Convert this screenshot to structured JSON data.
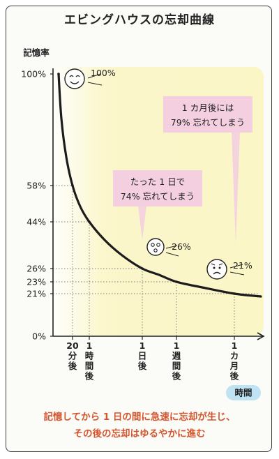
{
  "colors": {
    "plot_background": "#fbf6c6",
    "curve": "#1c1c1c",
    "callout": "#f4cfe0",
    "axis_chip": "#bfe3f2",
    "caption": "#d4562f"
  },
  "chart_data": {
    "type": "line",
    "title": "エビングハウスの忘却曲線",
    "ylabel": "記憶率",
    "xlabel": "時間",
    "ylim": [
      0,
      100
    ],
    "y_ticks": [
      {
        "value": 100,
        "label": "100%"
      },
      {
        "value": 58,
        "label": "58%"
      },
      {
        "value": 44,
        "label": "44%"
      },
      {
        "value": 26,
        "label": "26%"
      },
      {
        "value": 23,
        "label": "23%"
      },
      {
        "value": 21,
        "label": "21%"
      },
      {
        "value": 0,
        "label": "0%"
      }
    ],
    "x_ticks": [
      {
        "label": "20分後"
      },
      {
        "label": "1時間後"
      },
      {
        "label": "1日後"
      },
      {
        "label": "1週間後"
      },
      {
        "label": "1カ月後"
      }
    ],
    "series": [
      {
        "points": [
          {
            "x": "0",
            "y": 100
          },
          {
            "x": "20分後",
            "y": 58
          },
          {
            "x": "1時間後",
            "y": 44
          },
          {
            "x": "1日後",
            "y": 26
          },
          {
            "x": "1週間後",
            "y": 23
          },
          {
            "x": "1カ月後",
            "y": 21
          }
        ]
      }
    ],
    "point_labels": [
      {
        "x": "0",
        "label": "100%",
        "face": "smiling-face-icon"
      },
      {
        "x": "1日後",
        "label": "26%",
        "face": "surprised-face-icon"
      },
      {
        "x": "1カ月後",
        "label": "21%",
        "face": "worried-face-icon"
      }
    ],
    "annotations": [
      {
        "x": "1日後",
        "line1": "たった 1 日で",
        "line2": "74% 忘れてしまう"
      },
      {
        "x": "1カ月後",
        "line1": "1 カ月後には",
        "line2": "79% 忘れてしまう"
      }
    ],
    "grid": "dotted guides at labeled points"
  },
  "caption": {
    "line1": "記憶してから 1 日の間に急速に忘却が生じ、",
    "line2": "その後の忘却はゆるやかに進む"
  }
}
